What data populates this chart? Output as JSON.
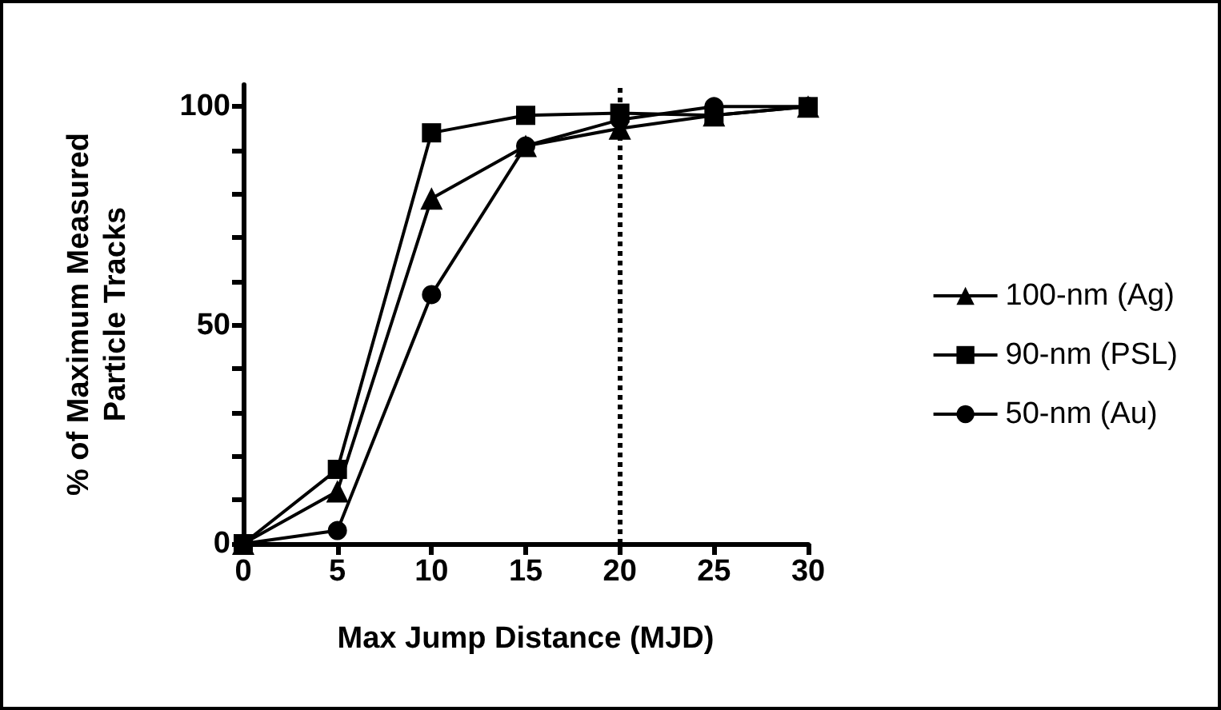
{
  "chart_data": {
    "type": "line",
    "xlabel": "Max Jump Distance (MJD)",
    "ylabel": "% of Maximum Measured\nParticle Tracks",
    "x": [
      0,
      5,
      10,
      15,
      20,
      25,
      30
    ],
    "series": [
      {
        "name": "100-nm (Ag)",
        "color": "#000000",
        "marker": "triangle",
        "values": [
          0,
          12,
          79,
          91,
          95,
          98,
          100
        ]
      },
      {
        "name": "90-nm (PSL)",
        "color": "#000000",
        "marker": "square",
        "values": [
          0,
          17,
          94,
          98,
          98.5,
          98,
          100
        ]
      },
      {
        "name": "50-nm (Au)",
        "color": "#000000",
        "marker": "circle",
        "values": [
          0,
          3,
          57,
          91,
          97,
          100,
          100
        ]
      }
    ],
    "xlim": [
      0,
      30
    ],
    "xticks": [
      0,
      5,
      10,
      15,
      20,
      25,
      30
    ],
    "ylim": [
      0,
      105
    ],
    "yticks": [
      0,
      {
        "value": 10,
        "label": null
      },
      {
        "value": 20,
        "label": null
      },
      {
        "value": 30,
        "label": null
      },
      {
        "value": 40,
        "label": null
      },
      50,
      {
        "value": 60,
        "label": null
      },
      {
        "value": 70,
        "label": null
      },
      {
        "value": 80,
        "label": null
      },
      {
        "value": 90,
        "label": null
      },
      100
    ],
    "ref_lines": [
      {
        "axis": "x",
        "value": 20,
        "line_style": "dotted"
      }
    ],
    "grid": false,
    "legend": "right",
    "line_style": "solid"
  }
}
